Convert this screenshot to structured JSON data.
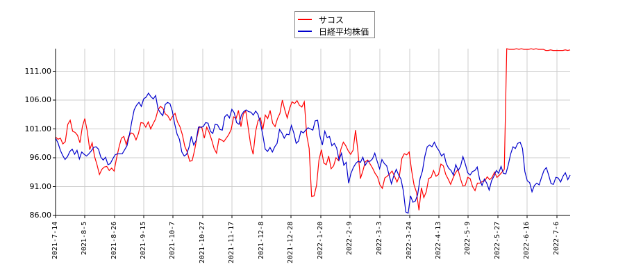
{
  "legend": {
    "items": [
      {
        "label": "サコス",
        "color": "#ff0000"
      },
      {
        "label": "日経平均株価",
        "color": "#0000cc"
      }
    ]
  },
  "chart_data": {
    "type": "line",
    "title": "",
    "xlabel": "",
    "ylabel": "",
    "ylim": [
      86.0,
      115.5
    ],
    "grid": true,
    "legend_position": "top-center",
    "y_ticks": [
      "86.00",
      "91.00",
      "96.00",
      "101.00",
      "106.00",
      "111.00"
    ],
    "x_ticks": [
      "2021-7-14",
      "2021-8-5",
      "2021-8-26",
      "2021-9-15",
      "2021-10-7",
      "2021-10-27",
      "2021-11-17",
      "2021-12-8",
      "2021-12-28",
      "2022-1-20",
      "2022-2-9",
      "2022-3-3",
      "2022-3-24",
      "2022-4-13",
      "2022-5-9",
      "2022-5-27",
      "2022-6-16",
      "2022-7-6"
    ],
    "series": [
      {
        "name": "サコス",
        "color": "#ff0000",
        "values": [
          99.6,
          99.2,
          99.4,
          98.4,
          98.8,
          101.8,
          102.5,
          100.6,
          100.4,
          99.9,
          98.6,
          101.4,
          102.8,
          100.6,
          97.4,
          98.6,
          96.2,
          94.8,
          93.1,
          94.0,
          94.4,
          94.5,
          93.8,
          94.2,
          93.7,
          95.9,
          97.8,
          99.4,
          99.7,
          98.3,
          99.8,
          100.3,
          100.1,
          99.1,
          100.2,
          102.1,
          102.0,
          101.3,
          102.2,
          101.0,
          101.9,
          102.7,
          104.3,
          104.9,
          104.6,
          103.6,
          103.3,
          102.5,
          103.2,
          103.7,
          102.2,
          101.4,
          100.0,
          98.0,
          97.0,
          95.4,
          95.5,
          97.3,
          99.6,
          101.4,
          101.2,
          99.4,
          101.3,
          100.4,
          99.1,
          97.6,
          96.8,
          99.3,
          99.1,
          98.8,
          99.4,
          100.0,
          100.9,
          103.1,
          102.8,
          104.2,
          101.4,
          103.6,
          104.1,
          101.2,
          98.3,
          96.6,
          100.5,
          102.4,
          102.9,
          100.9,
          103.4,
          102.8,
          104.2,
          102.0,
          101.4,
          102.8,
          103.7,
          106.0,
          104.3,
          102.9,
          104.6,
          105.7,
          105.4,
          105.9,
          105.1,
          104.8,
          105.7,
          99.9,
          97.6,
          89.3,
          89.4,
          91.2,
          95.6,
          97.4,
          95.1,
          94.8,
          96.3,
          94.1,
          94.6,
          96.0,
          95.5,
          97.5,
          98.7,
          98.1,
          97.2,
          96.6,
          97.3,
          100.8,
          97.0,
          92.4,
          93.7,
          95.3,
          95.6,
          94.9,
          94.2,
          93.3,
          92.7,
          91.3,
          90.7,
          92.5,
          92.8,
          93.2,
          93.7,
          92.8,
          91.8,
          92.9,
          95.9,
          96.7,
          96.5,
          97.0,
          93.8,
          91.3,
          90.0,
          86.9,
          90.8,
          89.1,
          90.1,
          92.4,
          92.6,
          93.8,
          92.8,
          93.1,
          94.9,
          94.6,
          93.1,
          92.3,
          91.4,
          92.5,
          93.4,
          94.0,
          92.4,
          91.1,
          91.2,
          92.6,
          92.4,
          91.0,
          90.3,
          91.6,
          91.6,
          91.9,
          92.0,
          92.7,
          92.2,
          92.6,
          93.5,
          92.6,
          93.0,
          93.5,
          94.0,
          114.9,
          114.8,
          114.8,
          114.8,
          114.9,
          114.8,
          114.9,
          114.8,
          114.8,
          114.8,
          114.9,
          114.8,
          114.9,
          114.8,
          114.8,
          114.8,
          114.6,
          114.6,
          114.7,
          114.6,
          114.6,
          114.6,
          114.6,
          114.6,
          114.7,
          114.6,
          114.7
        ]
      },
      {
        "name": "日経平均株価",
        "color": "#0000cc",
        "values": [
          99.4,
          98.6,
          97.3,
          96.4,
          95.7,
          96.2,
          97.1,
          97.5,
          96.6,
          97.3,
          95.8,
          97.0,
          96.6,
          96.3,
          96.7,
          97.2,
          97.8,
          97.9,
          97.5,
          96.1,
          95.6,
          96.1,
          94.8,
          95.0,
          95.8,
          96.5,
          96.7,
          96.7,
          96.7,
          97.4,
          98.1,
          99.9,
          102.3,
          104.3,
          105.1,
          105.6,
          104.9,
          106.2,
          106.5,
          107.2,
          106.6,
          106.2,
          106.8,
          104.5,
          103.8,
          103.3,
          105.2,
          105.6,
          105.4,
          104.1,
          101.9,
          100.1,
          99.2,
          97.0,
          96.3,
          96.6,
          97.8,
          99.7,
          98.2,
          99.0,
          101.3,
          101.3,
          101.4,
          102.1,
          102.0,
          100.6,
          100.2,
          101.8,
          101.7,
          100.9,
          100.8,
          103.1,
          103.5,
          102.9,
          104.4,
          103.8,
          102.1,
          101.8,
          103.4,
          104.0,
          104.3,
          104.0,
          103.9,
          103.4,
          104.1,
          103.5,
          102.0,
          99.9,
          97.5,
          97.1,
          97.8,
          97.0,
          97.9,
          98.5,
          100.9,
          100.3,
          99.4,
          100.1,
          100.0,
          101.6,
          100.3,
          98.5,
          98.9,
          100.6,
          100.3,
          100.8,
          101.2,
          101.0,
          100.8,
          102.4,
          102.5,
          99.7,
          98.2,
          100.6,
          99.5,
          99.7,
          98.1,
          98.5,
          97.7,
          95.6,
          96.8,
          94.7,
          95.2,
          91.6,
          93.3,
          94.3,
          95.0,
          95.4,
          95.2,
          96.1,
          94.7,
          95.4,
          95.4,
          95.8,
          96.8,
          95.4,
          94.1,
          95.7,
          95.0,
          94.6,
          93.0,
          91.5,
          92.9,
          94.0,
          93.0,
          92.3,
          90.2,
          86.6,
          86.4,
          89.4,
          88.3,
          88.5,
          89.6,
          92.4,
          93.7,
          96.2,
          97.9,
          98.2,
          97.9,
          98.7,
          97.8,
          97.2,
          96.3,
          96.7,
          95.0,
          94.2,
          93.8,
          93.0,
          94.8,
          93.8,
          94.5,
          96.2,
          94.9,
          93.4,
          93.0,
          93.6,
          93.8,
          94.4,
          92.3,
          91.2,
          92.3,
          91.6,
          90.4,
          92.0,
          92.8,
          93.8,
          93.3,
          94.5,
          93.3,
          93.2,
          94.7,
          96.6,
          97.9,
          97.6,
          98.5,
          98.7,
          97.6,
          93.6,
          92.0,
          91.7,
          90.1,
          91.2,
          91.6,
          91.3,
          92.6,
          93.8,
          94.3,
          93.0,
          91.5,
          91.4,
          92.6,
          92.5,
          91.8,
          92.8,
          93.4,
          92.2,
          93.0
        ]
      }
    ]
  }
}
